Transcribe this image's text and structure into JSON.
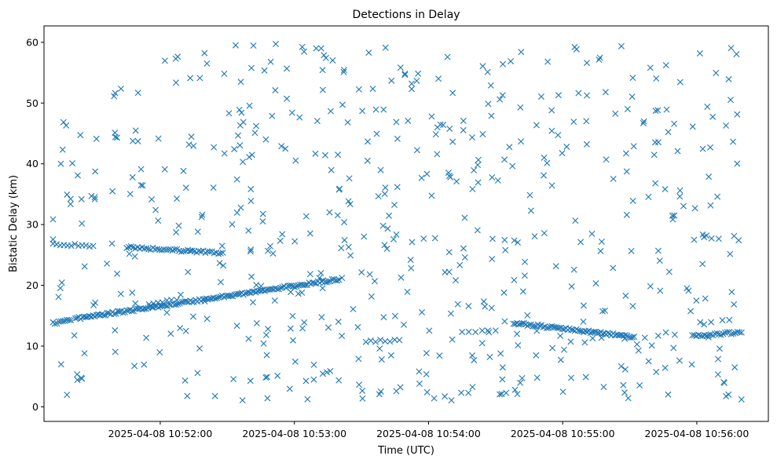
{
  "chart_data": {
    "type": "scatter",
    "title": "Detections in Delay",
    "xlabel": "Time (UTC)",
    "ylabel": "Bistatic Delay (km)",
    "xlim": [
      "2025-04-08 10:51:08",
      "2025-04-08 10:56:32"
    ],
    "ylim": [
      -2.4,
      62.7
    ],
    "x_ticks": [
      "2025-04-08 10:52:00",
      "2025-04-08 10:53:00",
      "2025-04-08 10:54:00",
      "2025-04-08 10:55:00",
      "2025-04-08 10:56:00"
    ],
    "y_ticks": [
      0,
      10,
      20,
      30,
      40,
      50,
      60
    ],
    "grid": false,
    "marker": "x",
    "color": "#1f77b4",
    "tracks": [
      {
        "start": "2025-04-08 10:51:12",
        "end": "2025-04-08 10:51:20",
        "y_start": 13.8,
        "y_end": 14.3,
        "count": 10
      },
      {
        "start": "2025-04-08 10:51:22",
        "end": "2025-04-08 10:53:20",
        "y_start": 14.5,
        "y_end": 21.0,
        "count": 150
      },
      {
        "start": "2025-04-08 10:51:12",
        "end": "2025-04-08 10:51:30",
        "y_start": 26.8,
        "y_end": 26.5,
        "count": 12
      },
      {
        "start": "2025-04-08 10:51:45",
        "end": "2025-04-08 10:52:28",
        "y_start": 26.3,
        "y_end": 25.3,
        "count": 45
      },
      {
        "start": "2025-04-08 10:54:38",
        "end": "2025-04-08 10:55:32",
        "y_start": 13.8,
        "y_end": 11.5,
        "count": 70
      },
      {
        "start": "2025-04-08 10:55:58",
        "end": "2025-04-08 10:56:20",
        "y_start": 11.6,
        "y_end": 12.3,
        "count": 25
      },
      {
        "start": "2025-04-08 10:51:55",
        "end": "2025-04-08 10:52:05",
        "y_start": 17.0,
        "y_end": 17.5,
        "count": 6
      },
      {
        "start": "2025-04-08 10:54:15",
        "end": "2025-04-08 10:54:30",
        "y_start": 12.3,
        "y_end": 12.4,
        "count": 6
      },
      {
        "start": "2025-04-08 10:53:32",
        "end": "2025-04-08 10:53:47",
        "y_start": 10.8,
        "y_end": 11.0,
        "count": 8
      }
    ],
    "clutter": {
      "start": "2025-04-08 10:51:12",
      "end": "2025-04-08 10:56:20",
      "y_min": 1.0,
      "y_max": 59.8,
      "count": 580
    }
  }
}
